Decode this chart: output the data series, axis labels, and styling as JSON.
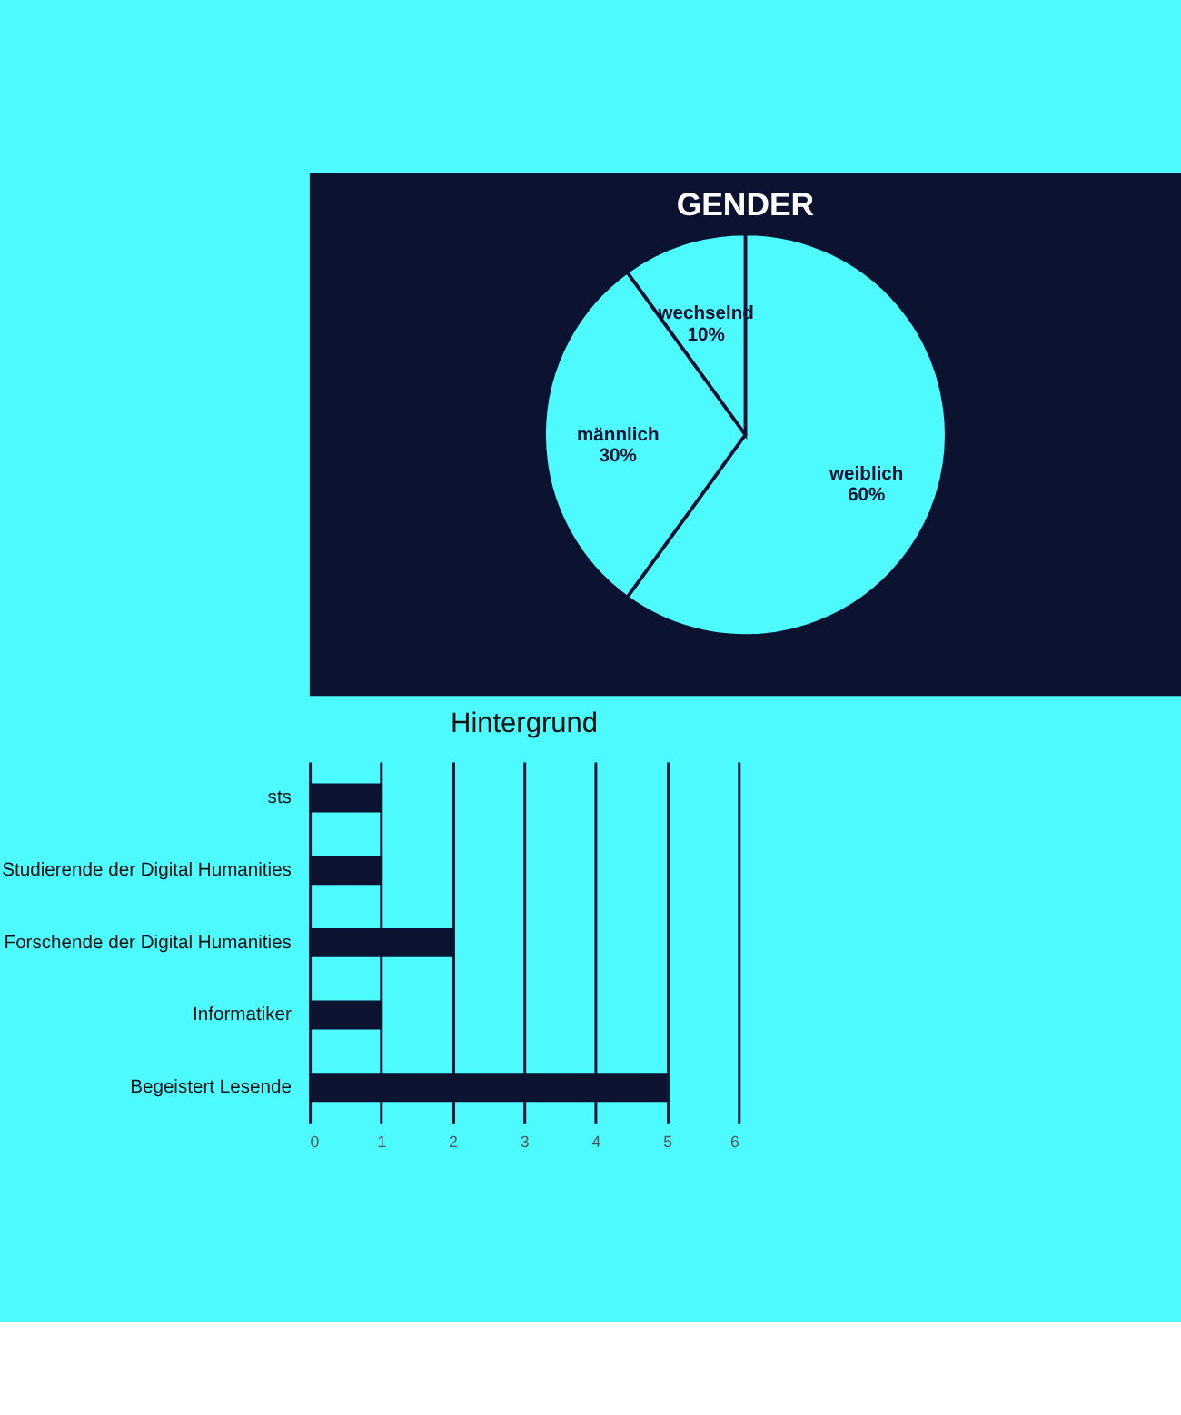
{
  "chart_data": [
    {
      "type": "pie",
      "title": "GENDER",
      "categories": [
        "weiblich",
        "männlich",
        "wechselnd"
      ],
      "values": [
        60,
        30,
        10
      ],
      "colors": [
        "#4dfbff",
        "#4dfbff",
        "#4dfbff"
      ],
      "value_labels": [
        "60%",
        "30%",
        "10%"
      ]
    },
    {
      "type": "bar",
      "title": "Hintergrund",
      "orientation": "horizontal",
      "categories": [
        "sts",
        "Studierende der Digital Humanities",
        "Forschende der Digital Humanities",
        "Informatiker",
        "Begeistert Lesende"
      ],
      "values": [
        1,
        1,
        2,
        1,
        5
      ],
      "color": "#0c1330",
      "xlim": [
        0,
        6
      ],
      "xticks": [
        0,
        1,
        2,
        3,
        4,
        5,
        6
      ],
      "grid": "x"
    }
  ]
}
